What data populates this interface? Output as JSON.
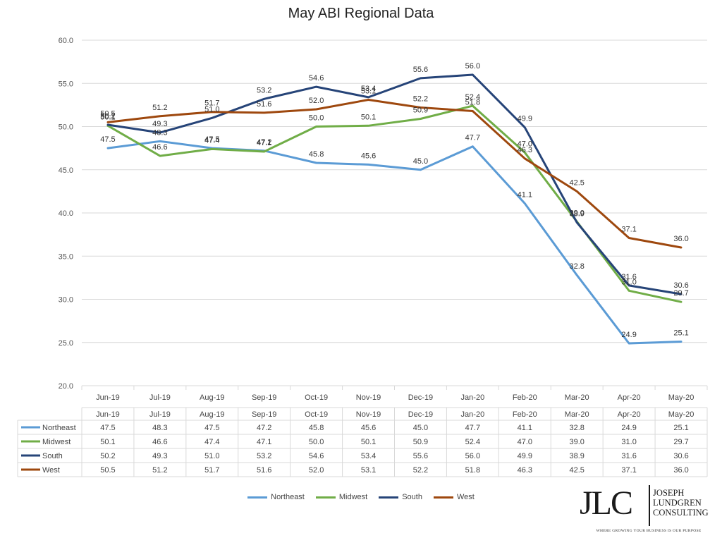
{
  "chart_data": {
    "type": "line",
    "title": "May ABI Regional Data",
    "categories": [
      "Jun-19",
      "Jul-19",
      "Aug-19",
      "Sep-19",
      "Oct-19",
      "Nov-19",
      "Dec-19",
      "Jan-20",
      "Feb-20",
      "Mar-20",
      "Apr-20",
      "May-20"
    ],
    "ylim": [
      20.0,
      60.0
    ],
    "yticks": [
      "20.0",
      "25.0",
      "30.0",
      "35.0",
      "40.0",
      "45.0",
      "50.0",
      "55.0",
      "60.0"
    ],
    "grid": true,
    "legend": "bottom",
    "data_table": true,
    "series": [
      {
        "name": "Northeast",
        "color": "#5b9bd5",
        "values": [
          47.5,
          48.3,
          47.5,
          47.2,
          45.8,
          45.6,
          45.0,
          47.7,
          41.1,
          32.8,
          24.9,
          25.1
        ]
      },
      {
        "name": "Midwest",
        "color": "#70ad47",
        "values": [
          50.1,
          46.6,
          47.4,
          47.1,
          50.0,
          50.1,
          50.9,
          52.4,
          47.0,
          39.0,
          31.0,
          29.7
        ]
      },
      {
        "name": "South",
        "color": "#264478",
        "values": [
          50.2,
          49.3,
          51.0,
          53.2,
          54.6,
          53.4,
          55.6,
          56.0,
          49.9,
          38.9,
          31.6,
          30.6
        ]
      },
      {
        "name": "West",
        "color": "#9e480e",
        "values": [
          50.5,
          51.2,
          51.7,
          51.6,
          52.0,
          53.1,
          52.2,
          51.8,
          46.3,
          42.5,
          37.1,
          36.0
        ]
      }
    ]
  },
  "logo": {
    "mark": "JLC",
    "name_lines": [
      "JOSEPH",
      "LUNDGREN",
      "CONSULTING"
    ],
    "tagline": "WHERE GROWING YOUR BUSINESS IS OUR PURPOSE"
  }
}
